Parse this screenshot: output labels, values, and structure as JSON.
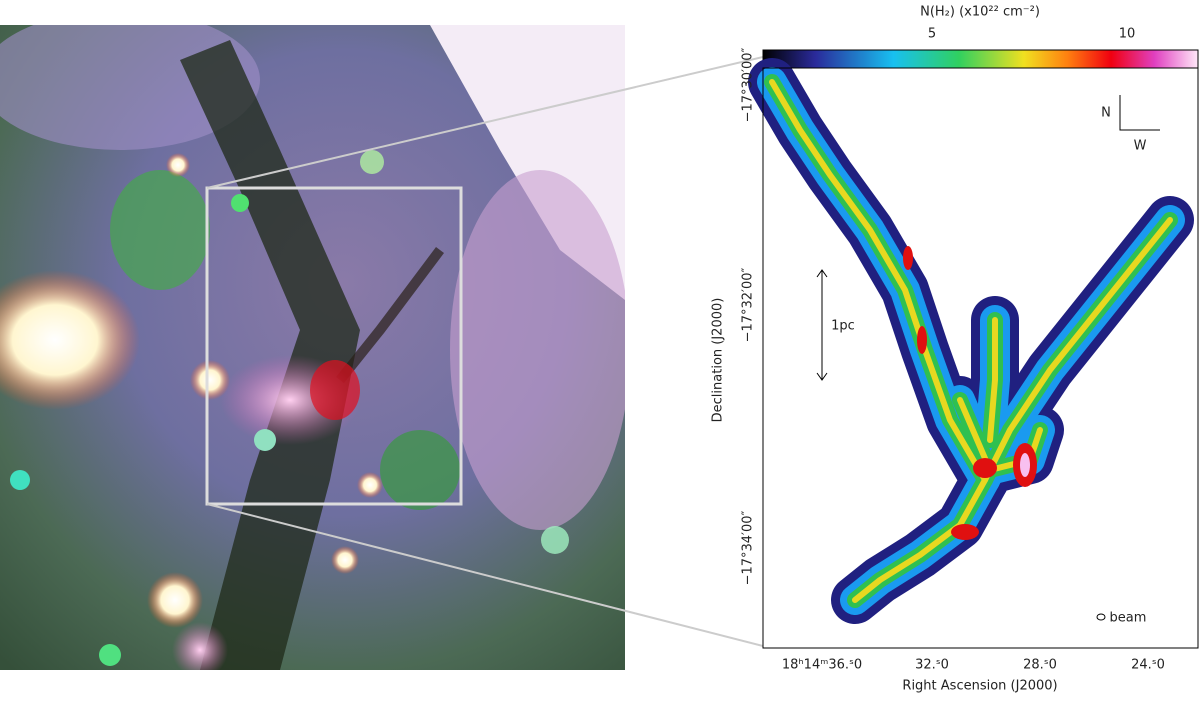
{
  "figure": {
    "colorbar": {
      "label": "N(H₂)  (x10²² cm⁻²)",
      "ticks": [
        "5",
        "10"
      ]
    },
    "dec_ticks": [
      "−17°30′00″",
      "−17°32′00″",
      "−17°34′00″"
    ],
    "ra_ticks": [
      "18ʰ14ᵐ36.ˢ0",
      "32.ˢ0",
      "28.ˢ0",
      "24.ˢ0"
    ],
    "x_label": "Right Ascension (J2000)",
    "y_label": "Declination (J2000)",
    "annotations": {
      "north": "N",
      "west": "W",
      "scale": "1pc",
      "beam": "beam"
    }
  }
}
